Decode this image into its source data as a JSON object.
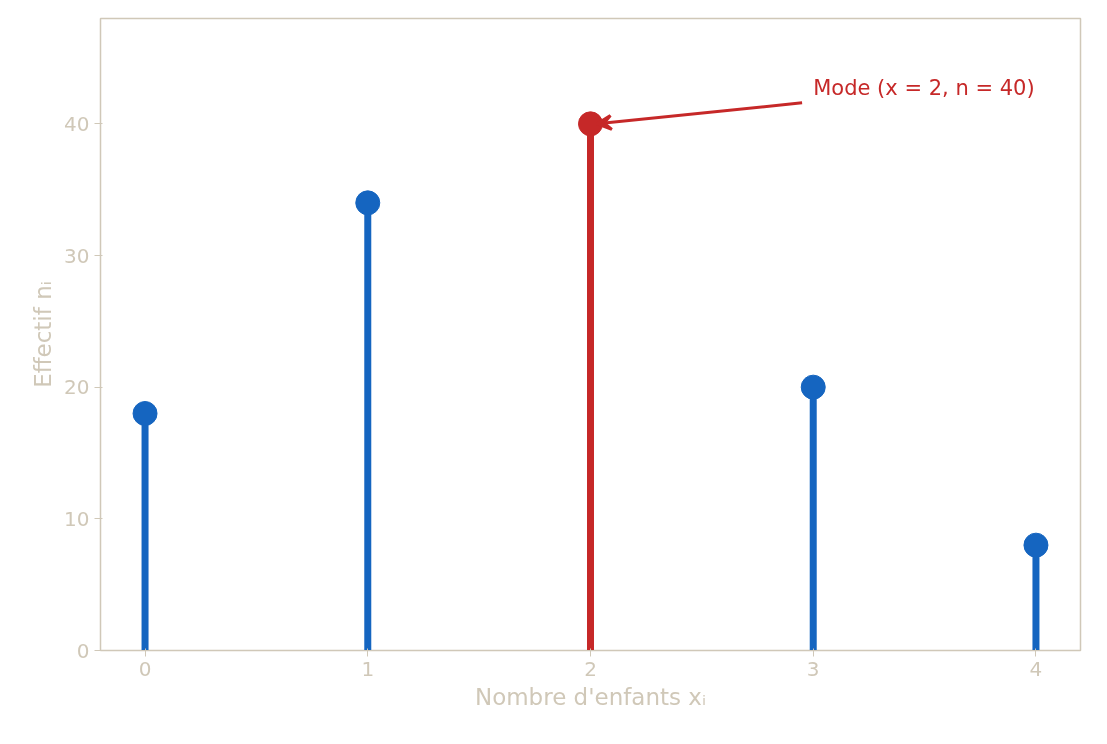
{
  "chart_data": {
    "type": "lollipop",
    "xlabel": "Nombre d'enfants xᵢ",
    "ylabel": "Effectif nᵢ",
    "x": [
      0,
      1,
      2,
      3,
      4
    ],
    "values": [
      18,
      34,
      40,
      20,
      8
    ],
    "colors": [
      "#1565c0",
      "#1565c0",
      "#c62828",
      "#1565c0",
      "#1565c0"
    ],
    "xlim": [
      -0.2,
      4.2
    ],
    "ylim": [
      0,
      48
    ],
    "xticks": [
      0,
      1,
      2,
      3,
      4
    ],
    "yticks": [
      0,
      10,
      20,
      30,
      40
    ],
    "grid": false,
    "marker": "circle",
    "annotations": [
      {
        "text": "Mode (x = 2, n = 40)",
        "x": 2,
        "y": 40
      }
    ]
  }
}
